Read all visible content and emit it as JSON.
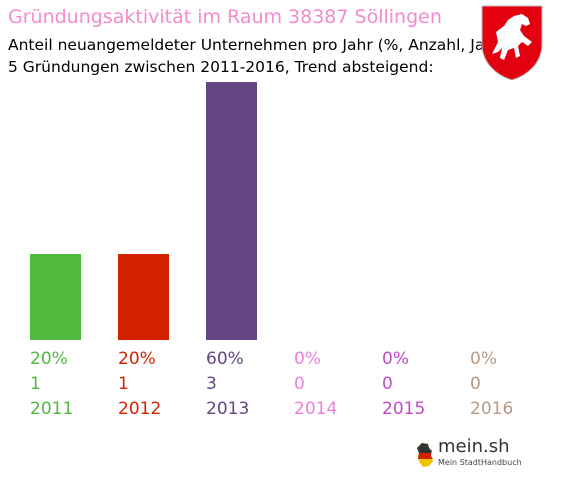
{
  "header": {
    "title": "Gründungsaktivität im Raum 38387 Söllingen",
    "subtitle_line1": "Anteil neuangemeldeter Unternehmen pro Jahr (%, Anzahl, Jahr)",
    "subtitle_line2": "5 Gründungen zwischen 2011-2016, Trend absteigend:"
  },
  "crest": {
    "icon": "lower-saxony-horse-crest-icon",
    "color": "#e3000f"
  },
  "logo": {
    "name": "mein.sh",
    "tagline": "Mein StadtHandbuch",
    "icon": "germany-map-icon"
  },
  "chart_data": {
    "type": "bar",
    "categories": [
      "2011",
      "2012",
      "2013",
      "2014",
      "2015",
      "2016"
    ],
    "values": [
      20,
      20,
      60,
      0,
      0,
      0
    ],
    "percent_labels": [
      "20%",
      "20%",
      "60%",
      "0%",
      "0%",
      "0%"
    ],
    "counts": [
      "1",
      "1",
      "3",
      "0",
      "0",
      "0"
    ],
    "colors": [
      "#52b93f",
      "#d42200",
      "#634682",
      "#ec7fdc",
      "#c04bc6",
      "#b39a86"
    ],
    "ylim": [
      0,
      60
    ]
  }
}
